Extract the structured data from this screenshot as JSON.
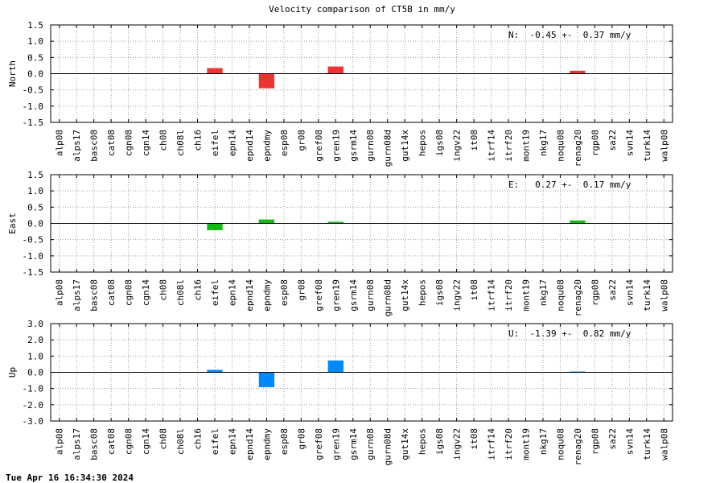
{
  "title": "Velocity comparison of CT5B in mm/y",
  "footer": "Tue Apr 16 16:34:30 2024",
  "chart_data": [
    {
      "type": "bar",
      "ylabel": "North",
      "stat": "N:  -0.45 +-  0.37 mm/y",
      "color": "#ee3333",
      "ylim": [
        -1.5,
        1.5
      ],
      "yticks": [
        "-1.5",
        "-1.0",
        "-0.5",
        "0.0",
        "0.5",
        "1.0",
        "1.5"
      ],
      "grid": true,
      "categories": [
        "alp08",
        "alps17",
        "basc08",
        "cat08",
        "cgn08",
        "cgn14",
        "ch08",
        "ch08l",
        "ch16",
        "eifel",
        "epn14",
        "epnd14",
        "epndmy",
        "esp08",
        "gr08",
        "gref08",
        "gren19",
        "gsrm14",
        "gurn08",
        "gurn08d",
        "gut14x",
        "hepos",
        "igs08",
        "ingv22",
        "it08",
        "itrf14",
        "itrf20",
        "mont19",
        "nkg17",
        "noqu08",
        "renag20",
        "rgp08",
        "sa22",
        "svn14",
        "turk14",
        "walp08"
      ],
      "values": [
        0,
        0,
        0,
        0,
        0,
        0,
        0,
        0,
        0,
        0.17,
        0,
        0,
        -0.45,
        0,
        0,
        0,
        0.22,
        0,
        0,
        0,
        0,
        0,
        0,
        0,
        0,
        0,
        0,
        0,
        0,
        0,
        0.09,
        0,
        0,
        0,
        0,
        0
      ]
    },
    {
      "type": "bar",
      "ylabel": "East",
      "stat": "E:   0.27 +-  0.17 mm/y",
      "color": "#11bb11",
      "ylim": [
        -1.5,
        1.5
      ],
      "yticks": [
        "-1.5",
        "-1.0",
        "-0.5",
        "0.0",
        "0.5",
        "1.0",
        "1.5"
      ],
      "grid": true,
      "categories": [
        "alp08",
        "alps17",
        "basc08",
        "cat08",
        "cgn08",
        "cgn14",
        "ch08",
        "ch08l",
        "ch16",
        "eifel",
        "epn14",
        "epnd14",
        "epndmy",
        "esp08",
        "gr08",
        "gref08",
        "gren19",
        "gsrm14",
        "gurn08",
        "gurn08d",
        "gut14x",
        "hepos",
        "igs08",
        "ingv22",
        "it08",
        "itrf14",
        "itrf20",
        "mont19",
        "nkg17",
        "noqu08",
        "renag20",
        "rgp08",
        "sa22",
        "svn14",
        "turk14",
        "walp08"
      ],
      "values": [
        0,
        0,
        0,
        0,
        0,
        0,
        0,
        0,
        0,
        -0.21,
        0,
        0,
        0.12,
        0,
        0,
        0,
        0.05,
        0,
        0,
        0,
        0,
        0,
        0,
        0,
        0,
        0,
        0,
        0,
        0,
        0,
        0.09,
        0,
        0,
        0,
        0,
        0
      ]
    },
    {
      "type": "bar",
      "ylabel": "Up",
      "stat": "U:  -1.39 +-  0.82 mm/y",
      "color": "#0088ff",
      "ylim": [
        -3.0,
        3.0
      ],
      "yticks": [
        "-3.0",
        "-2.0",
        "-1.0",
        "0.0",
        "1.0",
        "2.0",
        "3.0"
      ],
      "grid": true,
      "categories": [
        "alp08",
        "alps17",
        "basc08",
        "cat08",
        "cgn08",
        "cgn14",
        "ch08",
        "ch08l",
        "ch16",
        "eifel",
        "epn14",
        "epnd14",
        "epndmy",
        "esp08",
        "gr08",
        "gref08",
        "gren19",
        "gsrm14",
        "gurn08",
        "gurn08d",
        "gut14x",
        "hepos",
        "igs08",
        "ingv22",
        "it08",
        "itrf14",
        "itrf20",
        "mont19",
        "nkg17",
        "noqu08",
        "renag20",
        "rgp08",
        "sa22",
        "svn14",
        "turk14",
        "walp08"
      ],
      "values": [
        0,
        0,
        0,
        0,
        0,
        0,
        0,
        0,
        0,
        0.15,
        0,
        0,
        -0.92,
        0,
        0,
        0,
        0.73,
        0,
        0,
        0,
        0,
        0,
        0,
        0,
        0,
        0,
        0,
        0,
        0,
        0,
        0.05,
        0,
        0,
        0,
        0,
        0
      ]
    }
  ]
}
